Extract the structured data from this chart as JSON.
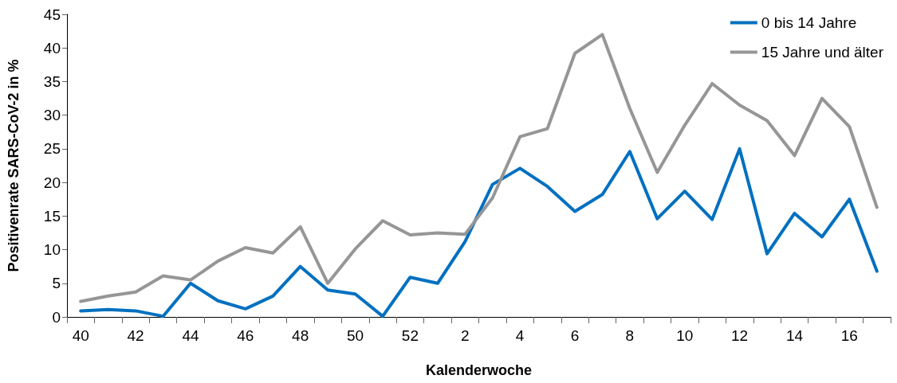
{
  "chart_data": {
    "type": "line",
    "xlabel": "Kalenderwoche",
    "ylabel": "Positivenrate SARS-CoV-2 in %",
    "categories": [
      "40",
      null,
      "42",
      null,
      "44",
      null,
      "46",
      null,
      "48",
      null,
      "50",
      null,
      "52",
      null,
      "2",
      null,
      "4",
      null,
      "6",
      null,
      "8",
      null,
      "10",
      null,
      "12",
      null,
      "14",
      null,
      "16",
      null
    ],
    "series": [
      {
        "name": "0 bis 14 Jahre",
        "color": "#0070c0",
        "values": [
          0.9,
          1.1,
          0.9,
          0.1,
          5.0,
          2.4,
          1.2,
          3.1,
          7.5,
          4.0,
          3.4,
          0.1,
          5.9,
          5.0,
          11.2,
          19.7,
          22.1,
          19.4,
          15.7,
          18.2,
          24.6,
          14.6,
          18.7,
          14.5,
          25.0,
          9.4,
          15.4,
          11.9,
          17.5,
          6.8
        ]
      },
      {
        "name": "15 Jahre und älter",
        "color": "#969696",
        "values": [
          2.3,
          3.1,
          3.7,
          6.1,
          5.5,
          8.3,
          10.3,
          9.5,
          13.4,
          5.0,
          10.1,
          14.3,
          12.2,
          12.5,
          12.3,
          17.7,
          26.8,
          28.0,
          39.2,
          42.0,
          31.0,
          21.5,
          28.5,
          34.7,
          31.5,
          29.2,
          24.0,
          32.5,
          28.3,
          16.3
        ]
      }
    ],
    "ylim": [
      0,
      45
    ],
    "yticks": [
      0,
      5,
      10,
      15,
      20,
      25,
      30,
      35,
      40,
      45
    ],
    "grid": false,
    "legend": "top right",
    "marker": "none",
    "line_style": "solid"
  }
}
